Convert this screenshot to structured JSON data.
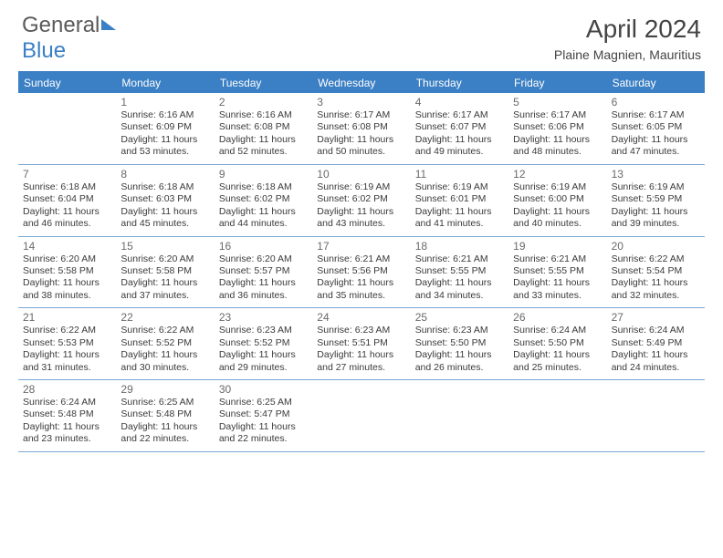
{
  "logo": {
    "part1": "General",
    "part2": "Blue"
  },
  "title": "April 2024",
  "location": "Plaine Magnien, Mauritius",
  "colors": {
    "header_bg": "#3b7fc4",
    "header_text": "#ffffff",
    "rule": "#7aa8d4",
    "text": "#3a3a3a",
    "daynum": "#6a6a6a"
  },
  "daynames": [
    "Sunday",
    "Monday",
    "Tuesday",
    "Wednesday",
    "Thursday",
    "Friday",
    "Saturday"
  ],
  "weeks": [
    [
      null,
      {
        "n": "1",
        "sr": "6:16 AM",
        "ss": "6:09 PM",
        "dl": "11 hours and 53 minutes."
      },
      {
        "n": "2",
        "sr": "6:16 AM",
        "ss": "6:08 PM",
        "dl": "11 hours and 52 minutes."
      },
      {
        "n": "3",
        "sr": "6:17 AM",
        "ss": "6:08 PM",
        "dl": "11 hours and 50 minutes."
      },
      {
        "n": "4",
        "sr": "6:17 AM",
        "ss": "6:07 PM",
        "dl": "11 hours and 49 minutes."
      },
      {
        "n": "5",
        "sr": "6:17 AM",
        "ss": "6:06 PM",
        "dl": "11 hours and 48 minutes."
      },
      {
        "n": "6",
        "sr": "6:17 AM",
        "ss": "6:05 PM",
        "dl": "11 hours and 47 minutes."
      }
    ],
    [
      {
        "n": "7",
        "sr": "6:18 AM",
        "ss": "6:04 PM",
        "dl": "11 hours and 46 minutes."
      },
      {
        "n": "8",
        "sr": "6:18 AM",
        "ss": "6:03 PM",
        "dl": "11 hours and 45 minutes."
      },
      {
        "n": "9",
        "sr": "6:18 AM",
        "ss": "6:02 PM",
        "dl": "11 hours and 44 minutes."
      },
      {
        "n": "10",
        "sr": "6:19 AM",
        "ss": "6:02 PM",
        "dl": "11 hours and 43 minutes."
      },
      {
        "n": "11",
        "sr": "6:19 AM",
        "ss": "6:01 PM",
        "dl": "11 hours and 41 minutes."
      },
      {
        "n": "12",
        "sr": "6:19 AM",
        "ss": "6:00 PM",
        "dl": "11 hours and 40 minutes."
      },
      {
        "n": "13",
        "sr": "6:19 AM",
        "ss": "5:59 PM",
        "dl": "11 hours and 39 minutes."
      }
    ],
    [
      {
        "n": "14",
        "sr": "6:20 AM",
        "ss": "5:58 PM",
        "dl": "11 hours and 38 minutes."
      },
      {
        "n": "15",
        "sr": "6:20 AM",
        "ss": "5:58 PM",
        "dl": "11 hours and 37 minutes."
      },
      {
        "n": "16",
        "sr": "6:20 AM",
        "ss": "5:57 PM",
        "dl": "11 hours and 36 minutes."
      },
      {
        "n": "17",
        "sr": "6:21 AM",
        "ss": "5:56 PM",
        "dl": "11 hours and 35 minutes."
      },
      {
        "n": "18",
        "sr": "6:21 AM",
        "ss": "5:55 PM",
        "dl": "11 hours and 34 minutes."
      },
      {
        "n": "19",
        "sr": "6:21 AM",
        "ss": "5:55 PM",
        "dl": "11 hours and 33 minutes."
      },
      {
        "n": "20",
        "sr": "6:22 AM",
        "ss": "5:54 PM",
        "dl": "11 hours and 32 minutes."
      }
    ],
    [
      {
        "n": "21",
        "sr": "6:22 AM",
        "ss": "5:53 PM",
        "dl": "11 hours and 31 minutes."
      },
      {
        "n": "22",
        "sr": "6:22 AM",
        "ss": "5:52 PM",
        "dl": "11 hours and 30 minutes."
      },
      {
        "n": "23",
        "sr": "6:23 AM",
        "ss": "5:52 PM",
        "dl": "11 hours and 29 minutes."
      },
      {
        "n": "24",
        "sr": "6:23 AM",
        "ss": "5:51 PM",
        "dl": "11 hours and 27 minutes."
      },
      {
        "n": "25",
        "sr": "6:23 AM",
        "ss": "5:50 PM",
        "dl": "11 hours and 26 minutes."
      },
      {
        "n": "26",
        "sr": "6:24 AM",
        "ss": "5:50 PM",
        "dl": "11 hours and 25 minutes."
      },
      {
        "n": "27",
        "sr": "6:24 AM",
        "ss": "5:49 PM",
        "dl": "11 hours and 24 minutes."
      }
    ],
    [
      {
        "n": "28",
        "sr": "6:24 AM",
        "ss": "5:48 PM",
        "dl": "11 hours and 23 minutes."
      },
      {
        "n": "29",
        "sr": "6:25 AM",
        "ss": "5:48 PM",
        "dl": "11 hours and 22 minutes."
      },
      {
        "n": "30",
        "sr": "6:25 AM",
        "ss": "5:47 PM",
        "dl": "11 hours and 22 minutes."
      },
      null,
      null,
      null,
      null
    ]
  ],
  "labels": {
    "sunrise": "Sunrise:",
    "sunset": "Sunset:",
    "daylight": "Daylight:"
  }
}
